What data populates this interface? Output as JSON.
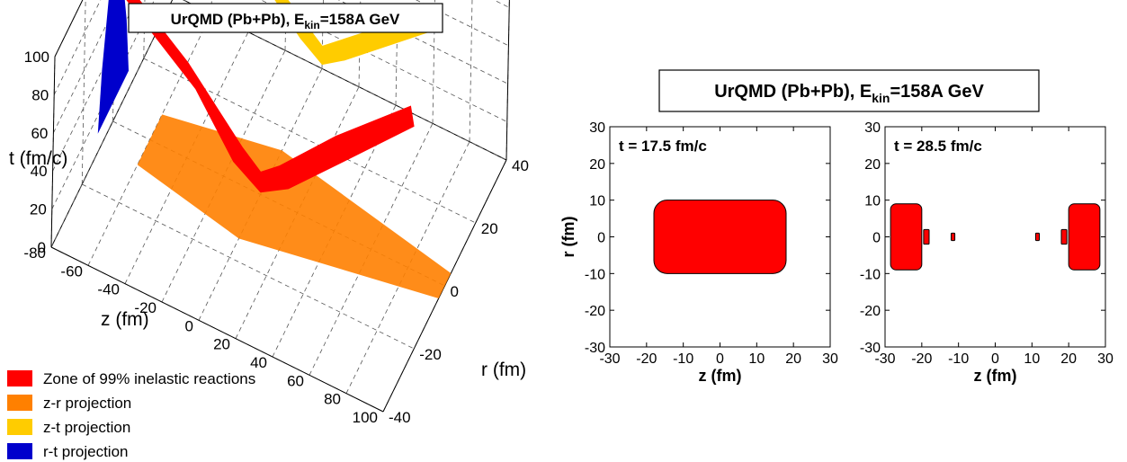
{
  "figure": {
    "left_title": {
      "main": "UrQMD (Pb+Pb), E",
      "sub": "kin",
      "rest": "=158A GeV"
    },
    "right_title": {
      "main": "UrQMD (Pb+Pb), E",
      "sub": "kin",
      "rest": "=158A GeV"
    }
  },
  "chart_data": [
    {
      "type": "scatter",
      "subtype": "3d-scatter",
      "title": "UrQMD (Pb+Pb), E_kin=158A GeV",
      "axes": {
        "z": {
          "label": "z (fm)",
          "range": [
            -80,
            100
          ],
          "ticks": [
            -80,
            -60,
            -40,
            -20,
            0,
            20,
            40,
            60,
            80,
            100
          ]
        },
        "r": {
          "label": "r (fm)",
          "range": [
            -40,
            40
          ],
          "ticks": [
            -40,
            -20,
            0,
            20,
            40
          ]
        },
        "t": {
          "label": "t (fm/c)",
          "range": [
            0,
            100
          ],
          "ticks": [
            0,
            20,
            40,
            60,
            80,
            100
          ]
        }
      },
      "grid": true,
      "legend_position": "bottom-left",
      "series": [
        {
          "name": "Zone of 99% inelastic reactions",
          "color": "#ff0000",
          "shape": "V in z-t, 3D cloud",
          "points_zt": [
            [
              -80,
              80
            ],
            [
              -40,
              50
            ],
            [
              -10,
              20
            ],
            [
              0,
              12
            ],
            [
              10,
              20
            ],
            [
              40,
              50
            ],
            [
              80,
              85
            ]
          ]
        },
        {
          "name": "z-r projection",
          "color": "#ff8000",
          "shape": "band in z-r plane at t=0",
          "z_range": [
            -60,
            100
          ],
          "r_range": [
            -8,
            8
          ]
        },
        {
          "name": "z-t projection",
          "color": "#ffcc00",
          "shape": "V in z-t plane at r=40",
          "points_zt": [
            [
              -60,
              60
            ],
            [
              -10,
              20
            ],
            [
              0,
              12
            ],
            [
              10,
              20
            ],
            [
              60,
              60
            ]
          ]
        },
        {
          "name": "r-t projection",
          "color": "#0000cc",
          "shape": "vertical column in r-t plane at z=-80",
          "r_range": [
            -8,
            8
          ],
          "t_range": [
            10,
            100
          ]
        }
      ]
    },
    {
      "type": "area",
      "title": "t = 17.5 fm/c",
      "xlabel": "z (fm)",
      "ylabel": "r (fm)",
      "xlim": [
        -30,
        30
      ],
      "ylim": [
        -30,
        30
      ],
      "xticks": [
        -30,
        -20,
        -10,
        0,
        10,
        20,
        30
      ],
      "yticks": [
        -30,
        -20,
        -10,
        0,
        10,
        20,
        30
      ],
      "fill_color": "#ff0000",
      "regions": [
        {
          "name": "central zone",
          "z_range": [
            -18,
            18
          ],
          "r_range": [
            -10,
            10
          ]
        }
      ]
    },
    {
      "type": "area",
      "title": "t = 28.5 fm/c",
      "xlabel": "z (fm)",
      "ylabel": "",
      "xlim": [
        -30,
        30
      ],
      "ylim": [
        -30,
        30
      ],
      "xticks": [
        -30,
        -20,
        -10,
        0,
        10,
        20,
        30
      ],
      "yticks": [
        -30,
        -20,
        -10,
        0,
        10,
        20,
        30
      ],
      "fill_color": "#ff0000",
      "regions": [
        {
          "name": "left zone",
          "z_range": [
            -28.5,
            -20
          ],
          "r_range": [
            -9,
            9
          ]
        },
        {
          "name": "left fragment",
          "z_range": [
            -19.5,
            -18
          ],
          "r_range": [
            -2,
            2
          ]
        },
        {
          "name": "left small fragment",
          "z_range": [
            -12,
            -11
          ],
          "r_range": [
            -1,
            1
          ]
        },
        {
          "name": "right small fragment",
          "z_range": [
            11,
            12
          ],
          "r_range": [
            -1,
            1
          ]
        },
        {
          "name": "right fragment",
          "z_range": [
            18,
            19.5
          ],
          "r_range": [
            -2,
            2
          ]
        },
        {
          "name": "right zone",
          "z_range": [
            20,
            28.5
          ],
          "r_range": [
            -9,
            9
          ]
        }
      ]
    }
  ]
}
